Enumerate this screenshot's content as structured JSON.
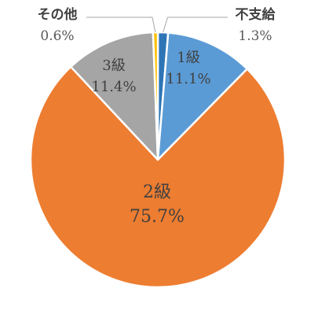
{
  "chart_data": {
    "type": "pie",
    "title": "",
    "slices": [
      {
        "name": "不支給",
        "value": 1.3,
        "label": "1.3%",
        "color": "#2E75B6"
      },
      {
        "name": "1級",
        "value": 11.1,
        "label": "11.1%",
        "color": "#5B9BD5"
      },
      {
        "name": "2級",
        "value": 75.7,
        "label": "75.7%",
        "color": "#ED7D31"
      },
      {
        "name": "3級",
        "value": 11.4,
        "label": "11.4%",
        "color": "#A5A5A5"
      },
      {
        "name": "その他",
        "value": 0.6,
        "label": "0.6%",
        "color": "#FFC000"
      }
    ],
    "legend": "none"
  }
}
